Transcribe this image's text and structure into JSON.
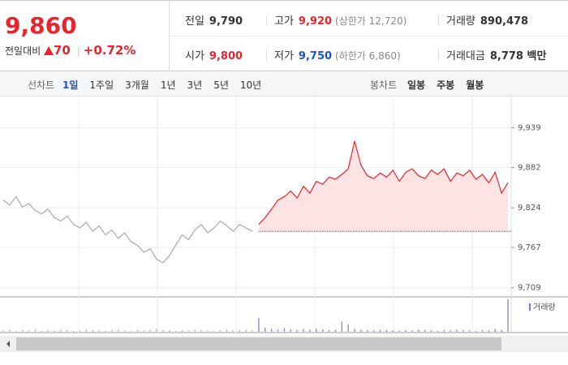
{
  "header": {
    "price": "9,860",
    "change_label": "전일대비",
    "change": "70",
    "change_pct": "+0.72%"
  },
  "info": {
    "row1": [
      {
        "label": "전일",
        "value": "9,790"
      },
      {
        "label": "고가",
        "value": "9,920",
        "note": "(상한가 12,720)"
      },
      {
        "label": "거래량",
        "value": "890,478"
      }
    ],
    "row2": [
      {
        "label": "시가",
        "value": "9,800"
      },
      {
        "label": "저가",
        "value": "9,750",
        "note": "(하한가 6,860)"
      },
      {
        "label": "거래대금",
        "value": "8,778 백만"
      }
    ]
  },
  "tabs": {
    "line_label": "선차트",
    "line_tabs": [
      "1일",
      "1주일",
      "3개월",
      "1년",
      "3년",
      "5년",
      "10년"
    ],
    "selected": "1일",
    "candle_label": "봉차트",
    "candle_tabs": [
      "일봉",
      "주봉",
      "월봉"
    ]
  },
  "chart_data": {
    "type": "line",
    "categories": [
      null,
      null,
      null,
      null,
      null,
      null,
      null,
      null,
      null,
      null,
      null,
      null,
      null,
      null,
      null,
      null,
      null,
      null,
      null,
      null,
      null,
      null,
      null,
      null,
      null,
      null,
      null,
      null,
      null,
      null,
      null,
      null,
      null,
      null,
      null,
      null,
      null,
      null,
      null,
      null,
      null,
      null,
      null,
      null,
      null,
      null,
      null,
      null,
      null,
      null,
      null,
      null,
      null,
      null,
      null,
      null,
      null,
      null,
      null,
      null,
      null,
      null,
      null,
      null,
      null,
      null,
      null,
      null,
      null,
      null,
      null,
      null,
      null,
      null,
      null,
      null,
      null,
      null,
      null,
      null
    ],
    "series": [
      {
        "color": "#aaaaaa",
        "values": [
          9835,
          9828,
          9840,
          9825,
          9830,
          9820,
          9815,
          9822,
          9810,
          9805,
          9812,
          9800,
          9795,
          9803,
          9790,
          9798,
          9785,
          9792,
          9780,
          9788,
          9775,
          9770,
          9760,
          9765,
          9750,
          9745,
          9755,
          9770,
          9785,
          9778,
          9792,
          9800,
          9788,
          9795,
          9805,
          9798,
          9790,
          9800,
          9795,
          9790,
          null,
          null,
          null,
          null,
          null,
          null,
          null,
          null,
          null,
          null,
          null,
          null,
          null,
          null,
          null,
          null,
          null,
          null,
          null,
          null,
          null,
          null,
          null,
          null,
          null,
          null,
          null,
          null,
          null,
          null,
          null,
          null,
          null,
          null,
          null,
          null,
          null,
          null,
          null,
          null
        ]
      },
      {
        "color": "#e8242c",
        "values": [
          null,
          null,
          null,
          null,
          null,
          null,
          null,
          null,
          null,
          null,
          null,
          null,
          null,
          null,
          null,
          null,
          null,
          null,
          null,
          null,
          null,
          null,
          null,
          null,
          null,
          null,
          null,
          null,
          null,
          null,
          null,
          null,
          null,
          null,
          null,
          null,
          null,
          null,
          null,
          null,
          9800,
          9810,
          9822,
          9835,
          9840,
          9848,
          9838,
          9855,
          9845,
          9862,
          9858,
          9868,
          9865,
          9872,
          9880,
          9920,
          9885,
          9870,
          9866,
          9874,
          9868,
          9878,
          9862,
          9875,
          9880,
          9870,
          9866,
          9878,
          9872,
          9880,
          9862,
          9874,
          9870,
          9878,
          9865,
          9872,
          9860,
          9875,
          9845,
          9860
        ]
      }
    ],
    "baseline": 9790,
    "ylim": [
      9697,
      9977
    ],
    "yticks": [
      {
        "value": 9939,
        "label": "9,939"
      },
      {
        "value": 9882,
        "label": "9,882"
      },
      {
        "value": 9824,
        "label": "9,824"
      },
      {
        "value": 9767,
        "label": "9,767"
      },
      {
        "value": 9709,
        "label": "9,709"
      }
    ],
    "grid": true,
    "volume": {
      "name": "거래량",
      "colors": [
        "#aaaaaa",
        "#8a6fc4"
      ],
      "values": [
        4,
        6,
        3,
        5,
        4,
        7,
        3,
        5,
        4,
        6,
        5,
        3,
        4,
        6,
        5,
        4,
        3,
        5,
        6,
        4,
        3,
        5,
        4,
        6,
        8,
        5,
        4,
        3,
        5,
        4,
        6,
        5,
        4,
        3,
        5,
        7,
        4,
        5,
        6,
        4,
        40,
        12,
        8,
        6,
        10,
        7,
        5,
        8,
        6,
        9,
        7,
        5,
        6,
        30,
        22,
        8,
        6,
        5,
        4,
        6,
        5,
        4,
        3,
        5,
        4,
        6,
        5,
        4,
        3,
        5,
        4,
        6,
        5,
        4,
        3,
        5,
        4,
        8,
        5,
        95
      ]
    }
  }
}
